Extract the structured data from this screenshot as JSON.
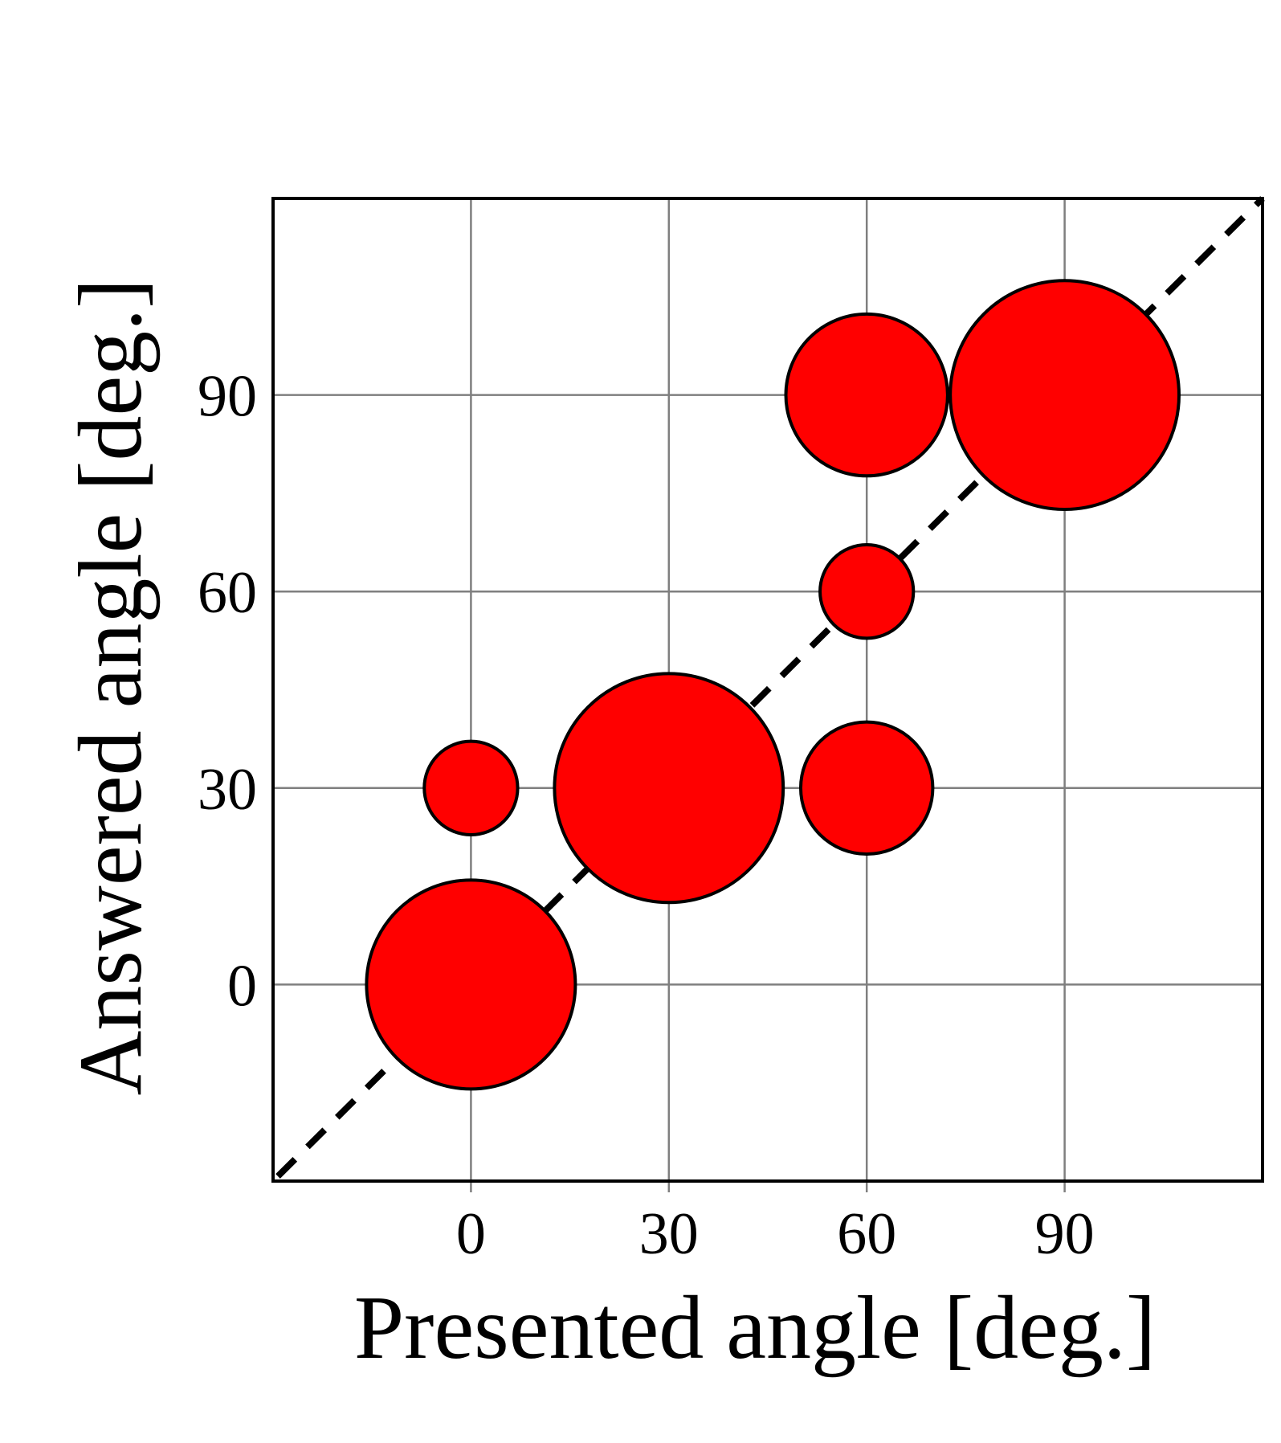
{
  "chart_data": {
    "type": "scatter",
    "title": "",
    "xlabel": "Presented angle [deg.]",
    "ylabel": "Answered angle [deg.]",
    "xlim": [
      -30,
      120
    ],
    "ylim": [
      -30,
      120
    ],
    "xticks": [
      0,
      30,
      60,
      90
    ],
    "yticks": [
      0,
      30,
      60,
      90
    ],
    "grid": true,
    "reference_line": "y = x (dashed)",
    "bubble_color": "#ff0000",
    "points": [
      {
        "x": 0,
        "y": 0,
        "size": 1.0
      },
      {
        "x": 0,
        "y": 30,
        "size": 0.2
      },
      {
        "x": 30,
        "y": 30,
        "size": 1.2
      },
      {
        "x": 60,
        "y": 30,
        "size": 0.4
      },
      {
        "x": 60,
        "y": 60,
        "size": 0.2
      },
      {
        "x": 60,
        "y": 90,
        "size": 0.6
      },
      {
        "x": 90,
        "y": 90,
        "size": 1.2
      }
    ]
  }
}
